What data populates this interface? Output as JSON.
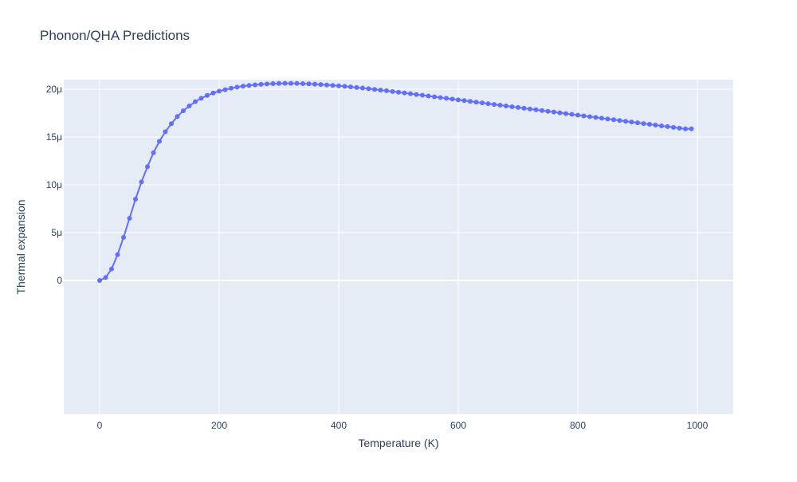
{
  "chart_data": {
    "type": "line",
    "title": "Phonon/QHA Predictions",
    "xlabel": "Temperature (K)",
    "ylabel": "Thermal expansion",
    "xlim": [
      -60,
      1060
    ],
    "ylim": [
      -1.4e-05,
      2.1e-05
    ],
    "x_ticks": [
      0,
      200,
      400,
      600,
      800,
      1000
    ],
    "x_tick_labels": [
      "0",
      "200",
      "400",
      "600",
      "800",
      "1000"
    ],
    "y_ticks": [
      0,
      5e-06,
      1e-05,
      1.5e-05,
      2e-05
    ],
    "y_tick_labels": [
      "0",
      "5μ",
      "10μ",
      "15μ",
      "20μ"
    ],
    "grid": true,
    "marker": "circle",
    "plot_background": "#e5ecf6",
    "grid_color": "#ffffff",
    "series_color": "#636efa",
    "series": [
      {
        "x": [
          0,
          10,
          20,
          30,
          40,
          50,
          60,
          70,
          80,
          90,
          100,
          110,
          120,
          130,
          140,
          150,
          160,
          170,
          180,
          190,
          200,
          210,
          220,
          230,
          240,
          250,
          260,
          270,
          280,
          290,
          300,
          310,
          320,
          330,
          340,
          350,
          360,
          370,
          380,
          390,
          400,
          410,
          420,
          430,
          440,
          450,
          460,
          470,
          480,
          490,
          500,
          510,
          520,
          530,
          540,
          550,
          560,
          570,
          580,
          590,
          600,
          610,
          620,
          630,
          640,
          650,
          660,
          670,
          680,
          690,
          700,
          710,
          720,
          730,
          740,
          750,
          760,
          770,
          780,
          790,
          800,
          810,
          820,
          830,
          840,
          850,
          860,
          870,
          880,
          890,
          900,
          910,
          920,
          930,
          940,
          950,
          960,
          970,
          980,
          990
        ],
        "y": [
          0,
          3e-07,
          1.2e-06,
          2.7e-06,
          4.5e-06,
          6.5e-06,
          8.5e-06,
          1.03e-05,
          1.19e-05,
          1.335e-05,
          1.455e-05,
          1.555e-05,
          1.64e-05,
          1.715e-05,
          1.775e-05,
          1.825e-05,
          1.87e-05,
          1.905e-05,
          1.935e-05,
          1.96e-05,
          1.98e-05,
          1.995e-05,
          2.01e-05,
          2.022e-05,
          2.032e-05,
          2.04e-05,
          2.046e-05,
          2.051e-05,
          2.055e-05,
          2.058e-05,
          2.06e-05,
          2.061e-05,
          2.061e-05,
          2.06e-05,
          2.058e-05,
          2.056e-05,
          2.053e-05,
          2.049e-05,
          2.045e-05,
          2.04e-05,
          2.035e-05,
          2.03e-05,
          2.024e-05,
          2.018e-05,
          2.012e-05,
          2.005e-05,
          1.998e-05,
          1.991e-05,
          1.984e-05,
          1.976e-05,
          1.969e-05,
          1.961e-05,
          1.953e-05,
          1.945e-05,
          1.937e-05,
          1.929e-05,
          1.921e-05,
          1.913e-05,
          1.905e-05,
          1.897e-05,
          1.889e-05,
          1.881e-05,
          1.873e-05,
          1.865e-05,
          1.857e-05,
          1.849e-05,
          1.841e-05,
          1.833e-05,
          1.825e-05,
          1.817e-05,
          1.809e-05,
          1.801e-05,
          1.793e-05,
          1.785e-05,
          1.777e-05,
          1.769e-05,
          1.761e-05,
          1.753e-05,
          1.745e-05,
          1.737e-05,
          1.729e-05,
          1.721e-05,
          1.713e-05,
          1.705e-05,
          1.697e-05,
          1.689e-05,
          1.681e-05,
          1.673e-05,
          1.665e-05,
          1.657e-05,
          1.649e-05,
          1.641e-05,
          1.633e-05,
          1.625e-05,
          1.617e-05,
          1.609e-05,
          1.601e-05,
          1.593e-05,
          1.585e-05,
          1.585e-05
        ]
      }
    ]
  }
}
